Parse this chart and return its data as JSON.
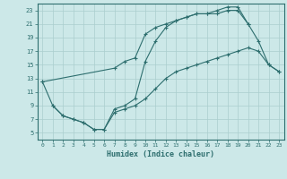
{
  "xlabel": "Humidex (Indice chaleur)",
  "background_color": "#cce8e8",
  "line_color": "#2d6e6e",
  "grid_color": "#aacece",
  "xlim": [
    -0.5,
    23.5
  ],
  "ylim": [
    4,
    24
  ],
  "xticks": [
    0,
    1,
    2,
    3,
    4,
    5,
    6,
    7,
    8,
    9,
    10,
    11,
    12,
    13,
    14,
    15,
    16,
    17,
    18,
    19,
    20,
    21,
    22,
    23
  ],
  "yticks": [
    5,
    7,
    9,
    11,
    13,
    15,
    17,
    19,
    21,
    23
  ],
  "curve1_x": [
    1,
    2,
    3,
    4,
    5,
    6,
    7,
    8,
    9,
    10,
    11,
    12,
    13,
    14,
    15,
    16,
    17,
    18,
    19,
    20,
    21,
    22,
    23
  ],
  "curve1_y": [
    9.0,
    7.5,
    7.0,
    6.5,
    5.5,
    5.5,
    8.0,
    8.5,
    9.0,
    10.0,
    11.5,
    13.0,
    14.0,
    14.5,
    15.0,
    15.5,
    16.0,
    16.5,
    17.0,
    17.5,
    17.0,
    15.0,
    14.0
  ],
  "curve2_x": [
    0,
    1,
    2,
    3,
    4,
    5,
    6,
    7,
    8,
    9,
    10,
    11,
    12,
    13,
    14,
    15,
    16,
    17,
    18,
    19,
    20
  ],
  "curve2_y": [
    12.5,
    9.0,
    7.5,
    7.0,
    6.5,
    5.5,
    5.5,
    8.5,
    9.0,
    10.0,
    15.5,
    18.5,
    20.5,
    21.5,
    22.0,
    22.5,
    22.5,
    22.5,
    23.0,
    23.0,
    21.0
  ],
  "curve3_x": [
    0,
    7,
    8,
    9,
    10,
    11,
    12,
    13,
    14,
    15,
    16,
    17,
    18,
    19,
    20,
    21,
    22,
    23
  ],
  "curve3_y": [
    12.5,
    14.5,
    15.5,
    16.0,
    19.5,
    20.5,
    21.0,
    21.5,
    22.0,
    22.5,
    22.5,
    23.0,
    23.5,
    23.5,
    21.0,
    18.5,
    15.0,
    14.0
  ]
}
